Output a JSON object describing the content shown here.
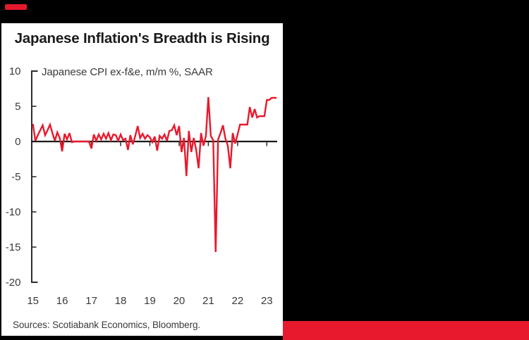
{
  "colors": {
    "background": "#000000",
    "panel": "#ffffff",
    "accent_red": "#e8192c",
    "title_text": "#1a1a1a",
    "axis_line": "#2d2d2d",
    "zero_line": "#1a1a1a",
    "tick_label_text": "#3a3a3a"
  },
  "header": {
    "title": "Japanese Inflation's Breadth is Rising"
  },
  "footer": {
    "sources": "Sources: Scotiabank Economics, Bloomberg."
  },
  "chart_data": {
    "type": "line",
    "title": "Japanese Inflation's Breadth is Rising",
    "legend_label": "Japanese CPI ex-f&e, m/m %, SAAR",
    "legend_position": "top-left inside",
    "grid": false,
    "line_color": "#e8192c",
    "zero_line": true,
    "ylim": [
      -20,
      10
    ],
    "y_ticks": [
      10,
      5,
      0,
      -5,
      -10,
      -15,
      -20
    ],
    "x_tick_labels": [
      "15",
      "16",
      "17",
      "18",
      "19",
      "20",
      "21",
      "22",
      "23"
    ],
    "x_start": "2015-01",
    "frequency": "monthly",
    "ylabel": "",
    "xlabel": "",
    "values": [
      2.5,
      0.1,
      0.9,
      1.6,
      2.3,
      0.9,
      1.6,
      2.4,
      1.2,
      0.1,
      1.3,
      0.5,
      -1.4,
      1.1,
      0.3,
      1.2,
      -0.1,
      0.0,
      0.0,
      0.0,
      0.0,
      0.0,
      0.0,
      0.0,
      -1.0,
      1.0,
      0.1,
      1.0,
      0.3,
      1.1,
      0.4,
      1.2,
      0.2,
      1.0,
      0.9,
      0.1,
      1.0,
      0.2,
      0.4,
      -1.2,
      0.9,
      -0.4,
      0.8,
      2.2,
      0.5,
      1.1,
      0.4,
      0.9,
      0.6,
      -0.1,
      0.7,
      -1.3,
      0.8,
      0.4,
      1.0,
      0.1,
      1.5,
      1.6,
      2.3,
      0.9,
      2.2,
      -1.5,
      0.5,
      -4.9,
      1.5,
      -1.5,
      0.5,
      -1.2,
      -3.8,
      1.2,
      -0.6,
      0.8,
      6.3,
      0.8,
      0.2,
      -15.7,
      0.3,
      1.2,
      2.3,
      0.4,
      -0.6,
      -3.8,
      1.2,
      -0.3,
      1.0,
      2.4,
      2.4,
      2.4,
      2.4,
      4.9,
      3.4,
      4.6,
      3.4,
      3.6,
      3.6,
      3.6,
      5.9,
      5.9,
      6.2,
      6.2,
      6.2
    ]
  }
}
